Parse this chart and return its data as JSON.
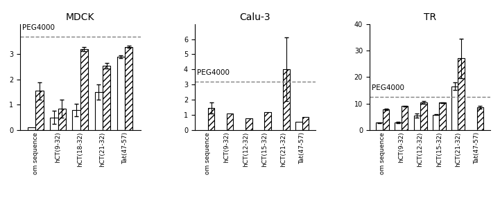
{
  "panel1": {
    "title": "MDCK",
    "peg4000_line": 3.7,
    "peg4000_label": "PEG4000",
    "ylim": [
      0,
      4.2
    ],
    "yticks": [
      0,
      1,
      2,
      3
    ],
    "categories": [
      "om sequence",
      "hCT(9-32)",
      "hCT(18-32)",
      "hCT(21-32)",
      "Tat(47-57)"
    ],
    "white_bars": [
      0.1,
      0.5,
      0.8,
      1.5,
      2.9
    ],
    "white_errs": [
      0.0,
      0.25,
      0.25,
      0.3,
      0.05
    ],
    "hatch_bars": [
      1.55,
      0.85,
      3.2,
      2.55,
      3.3
    ],
    "hatch_errs": [
      0.35,
      0.35,
      0.08,
      0.1,
      0.05
    ]
  },
  "panel2": {
    "title": "Calu-3",
    "peg4000_line": 3.2,
    "peg4000_label": "PEG4000",
    "ylim": [
      0,
      7.0
    ],
    "yticks": [
      0,
      1,
      2,
      3,
      4,
      5,
      6
    ],
    "categories": [
      "om sequence",
      "hCT(9-32)",
      "hCT(12-32)",
      "hCT(15-32)",
      "hCT(21-32)",
      "Tat(47-57)"
    ],
    "white_bars": [
      null,
      null,
      null,
      null,
      null,
      0.55
    ],
    "white_errs": [
      null,
      null,
      null,
      null,
      null,
      0.0
    ],
    "hatch_bars": [
      1.45,
      1.1,
      0.75,
      1.2,
      4.0,
      0.85
    ],
    "hatch_errs": [
      0.35,
      0.0,
      0.0,
      0.0,
      2.1,
      0.0
    ]
  },
  "panel3": {
    "title": "TR",
    "peg4000_line": 12.5,
    "peg4000_label": "PEG4000",
    "ylim": [
      0,
      40
    ],
    "yticks": [
      0,
      10,
      20,
      30,
      40
    ],
    "categories": [
      "om sequence",
      "hCT(9-32)",
      "hCT(12-32)",
      "hCT(15-32)",
      "hCT(21-32)",
      "Tat(47-57)"
    ],
    "white_bars": [
      2.8,
      2.8,
      5.5,
      5.8,
      16.5,
      null
    ],
    "white_errs": [
      0.1,
      0.3,
      0.8,
      0.2,
      1.5,
      null
    ],
    "hatch_bars": [
      7.8,
      9.0,
      10.5,
      10.3,
      27.0,
      8.5
    ],
    "hatch_errs": [
      0.3,
      0.2,
      0.5,
      0.2,
      7.5,
      0.5
    ]
  },
  "bar_width": 0.35,
  "hatch_pattern": "////",
  "bar_color": "white",
  "hatch_facecolor": "white",
  "hatch_edgecolor": "black",
  "label_fontsize": 6.5,
  "title_fontsize": 10,
  "tick_fontsize": 7,
  "peg_fontsize": 7.5
}
